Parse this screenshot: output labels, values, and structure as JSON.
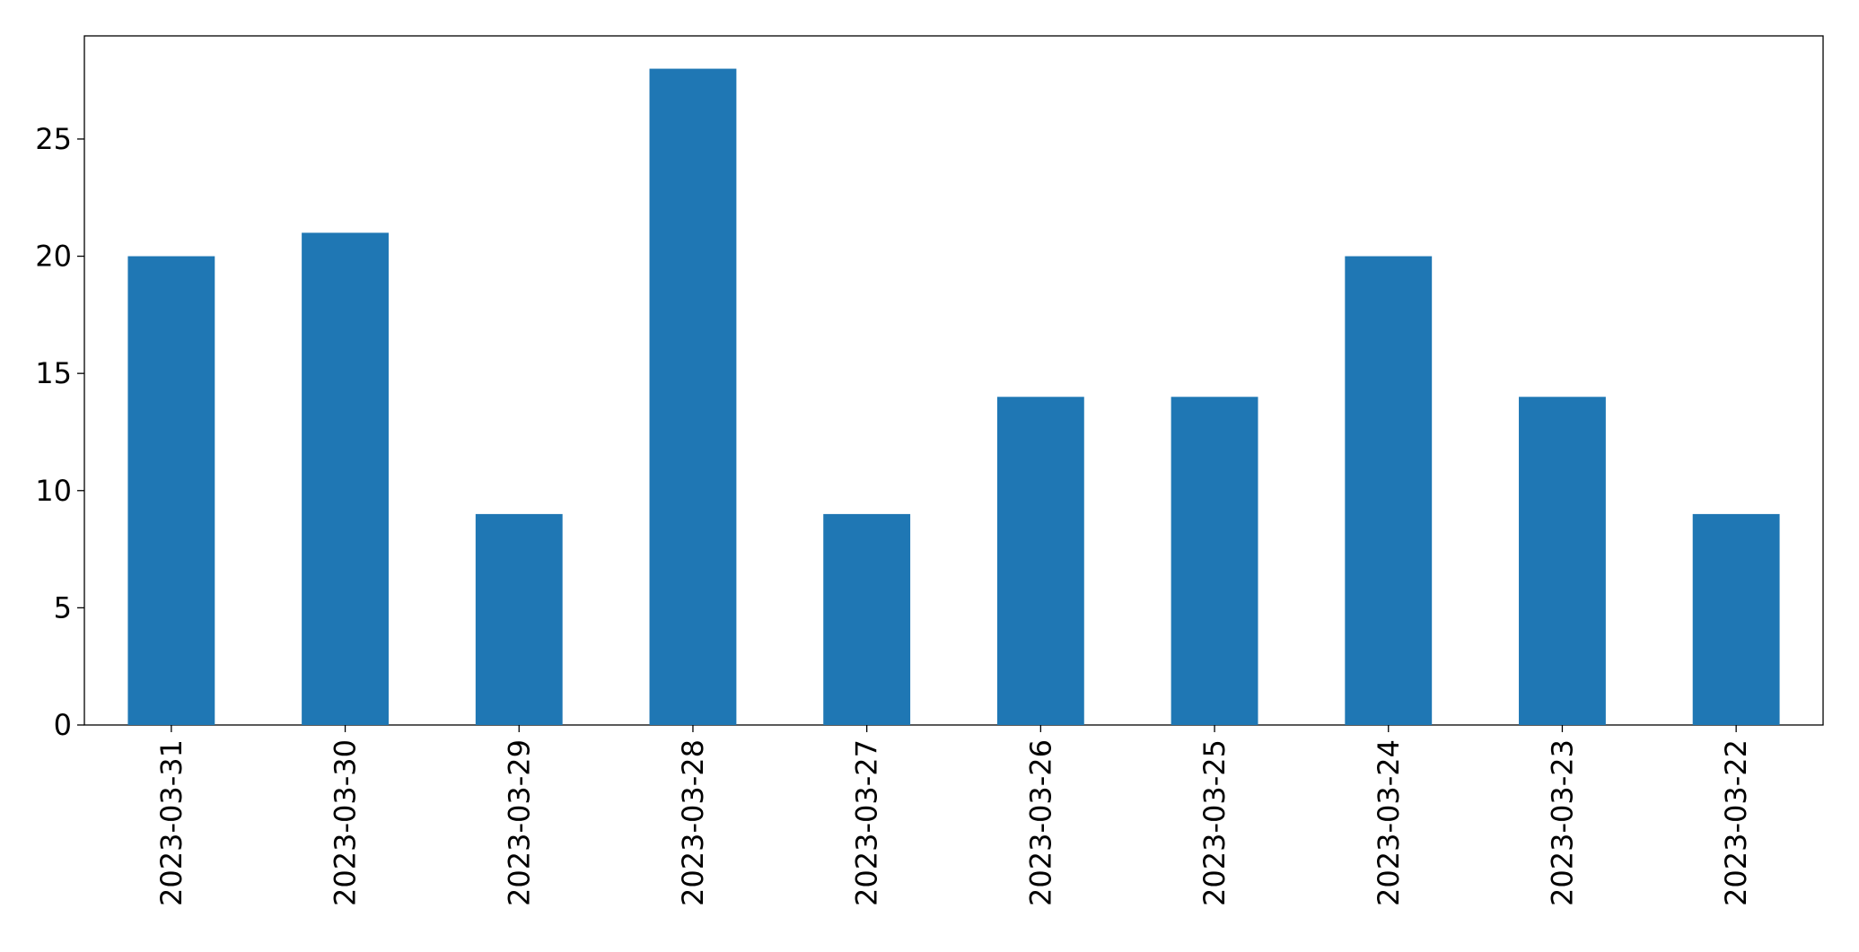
{
  "chart_data": {
    "type": "bar",
    "categories": [
      "2023-03-31",
      "2023-03-30",
      "2023-03-29",
      "2023-03-28",
      "2023-03-27",
      "2023-03-26",
      "2023-03-25",
      "2023-03-24",
      "2023-03-23",
      "2023-03-22"
    ],
    "values": [
      20,
      21,
      9,
      28,
      9,
      14,
      14,
      20,
      14,
      9
    ],
    "color": "#1f77b4",
    "ylim": [
      0,
      29.4
    ],
    "yticks": [
      0,
      5,
      10,
      15,
      20,
      25
    ],
    "grid": false
  }
}
